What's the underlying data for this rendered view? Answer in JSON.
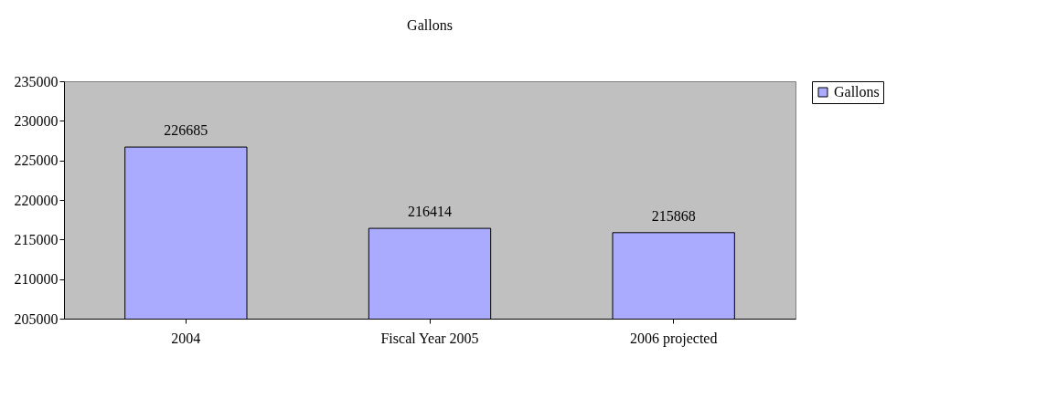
{
  "chart_data": {
    "type": "bar",
    "title": "Gallons",
    "categories": [
      "2004",
      "Fiscal Year 2005",
      "2006 projected"
    ],
    "series": [
      {
        "name": "Gallons",
        "color": "#aaaaff",
        "values": [
          226685,
          216414,
          215868
        ]
      }
    ],
    "ylim": [
      205000,
      235000
    ],
    "yticks": [
      205000,
      210000,
      215000,
      220000,
      225000,
      230000,
      235000
    ],
    "data_labels": true,
    "grid": false,
    "legend": "right"
  }
}
